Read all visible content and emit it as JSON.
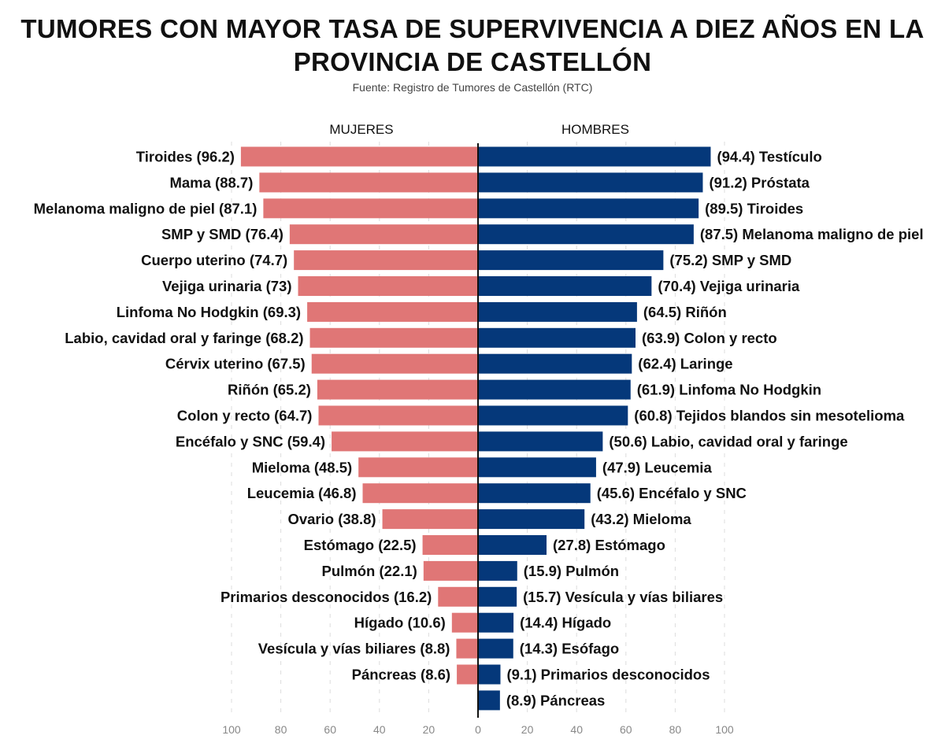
{
  "chart_data": {
    "type": "bar",
    "orientation": "horizontal-diverging",
    "title": "TUMORES CON MAYOR TASA DE SUPERVIVENCIA A DIEZ AÑOS EN LA PROVINCIA DE CASTELLÓN",
    "subtitle": "Fuente: Registro de Tumores de Castellón (RTC)",
    "xlim": [
      0,
      100
    ],
    "ticks": [
      "100",
      "80",
      "60",
      "40",
      "20",
      "0",
      "20",
      "40",
      "60",
      "80",
      "100"
    ],
    "grid": true,
    "series": [
      {
        "name": "MUJERES",
        "color": "#E07676",
        "side": "left",
        "labels": [
          "Tiroides (96.2)",
          "Mama (88.7)",
          "Melanoma maligno de piel (87.1)",
          "SMP y SMD (76.4)",
          "Cuerpo uterino (74.7)",
          "Vejiga urinaria (73)",
          "Linfoma No Hodgkin (69.3)",
          "Labio, cavidad oral y faringe (68.2)",
          "Cérvix uterino (67.5)",
          "Riñón (65.2)",
          "Colon y recto (64.7)",
          "Encéfalo y SNC (59.4)",
          "Mieloma (48.5)",
          "Leucemia (46.8)",
          "Ovario (38.8)",
          "Estómago (22.5)",
          "Pulmón (22.1)",
          "Primarios desconocidos (16.2)",
          "Hígado (10.6)",
          "Vesícula y vías biliares (8.8)",
          "Páncreas (8.6)"
        ],
        "values": [
          96.2,
          88.7,
          87.1,
          76.4,
          74.7,
          73,
          69.3,
          68.2,
          67.5,
          65.2,
          64.7,
          59.4,
          48.5,
          46.8,
          38.8,
          22.5,
          22.1,
          16.2,
          10.6,
          8.8,
          8.6
        ]
      },
      {
        "name": "HOMBRES",
        "color": "#05387A",
        "side": "right",
        "labels": [
          "(94.4) Testículo",
          "(91.2) Próstata",
          "(89.5) Tiroides",
          "(87.5) Melanoma maligno de piel",
          "(75.2) SMP y SMD",
          "(70.4) Vejiga urinaria",
          "(64.5) Riñón",
          "(63.9) Colon y recto",
          "(62.4) Laringe",
          "(61.9) Linfoma No Hodgkin",
          "(60.8) Tejidos blandos sin mesotelioma",
          "(50.6) Labio, cavidad oral y faringe",
          "(47.9) Leucemia",
          "(45.6) Encéfalo y SNC",
          "(43.2) Mieloma",
          "(27.8) Estómago",
          "(15.9) Pulmón",
          "(15.7) Vesícula y vías biliares",
          "(14.4) Hígado",
          "(14.3) Esófago",
          "(9.1) Primarios desconocidos",
          "(8.9) Páncreas"
        ],
        "values": [
          94.4,
          91.2,
          89.5,
          87.5,
          75.2,
          70.4,
          64.5,
          63.9,
          62.4,
          61.9,
          60.8,
          50.6,
          47.9,
          45.6,
          43.2,
          27.8,
          15.9,
          15.7,
          14.4,
          14.3,
          9.1,
          8.9
        ]
      }
    ]
  }
}
